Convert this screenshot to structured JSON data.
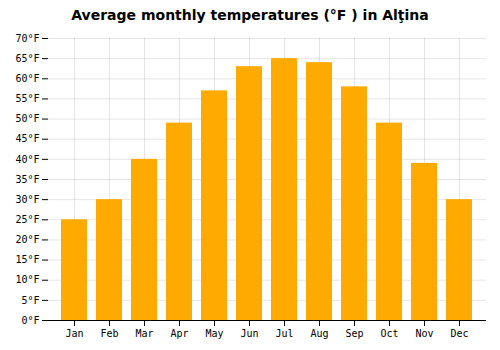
{
  "chart_data": {
    "type": "bar",
    "title": "Average monthly temperatures (°F ) in Alţina",
    "categories": [
      "Jan",
      "Feb",
      "Mar",
      "Apr",
      "May",
      "Jun",
      "Jul",
      "Aug",
      "Sep",
      "Oct",
      "Nov",
      "Dec"
    ],
    "values": [
      25,
      30,
      40,
      49,
      57,
      63,
      65,
      64,
      58,
      49,
      39,
      30
    ],
    "color": "#FFAA00",
    "ylim": [
      0,
      70
    ],
    "yticks": [
      {
        "value": 0,
        "label": "0°F"
      },
      {
        "value": 5,
        "label": "5°F"
      },
      {
        "value": 10,
        "label": "10°F"
      },
      {
        "value": 15,
        "label": "15°F"
      },
      {
        "value": 20,
        "label": "20°F"
      },
      {
        "value": 25,
        "label": "25°F"
      },
      {
        "value": 30,
        "label": "30°F"
      },
      {
        "value": 35,
        "label": "35°F"
      },
      {
        "value": 40,
        "label": "40°F"
      },
      {
        "value": 45,
        "label": "45°F"
      },
      {
        "value": 50,
        "label": "50°F"
      },
      {
        "value": 55,
        "label": "55°F"
      },
      {
        "value": 60,
        "label": "60°F"
      },
      {
        "value": 65,
        "label": "65°F"
      },
      {
        "value": 70,
        "label": "70°F"
      }
    ],
    "grid": true
  }
}
